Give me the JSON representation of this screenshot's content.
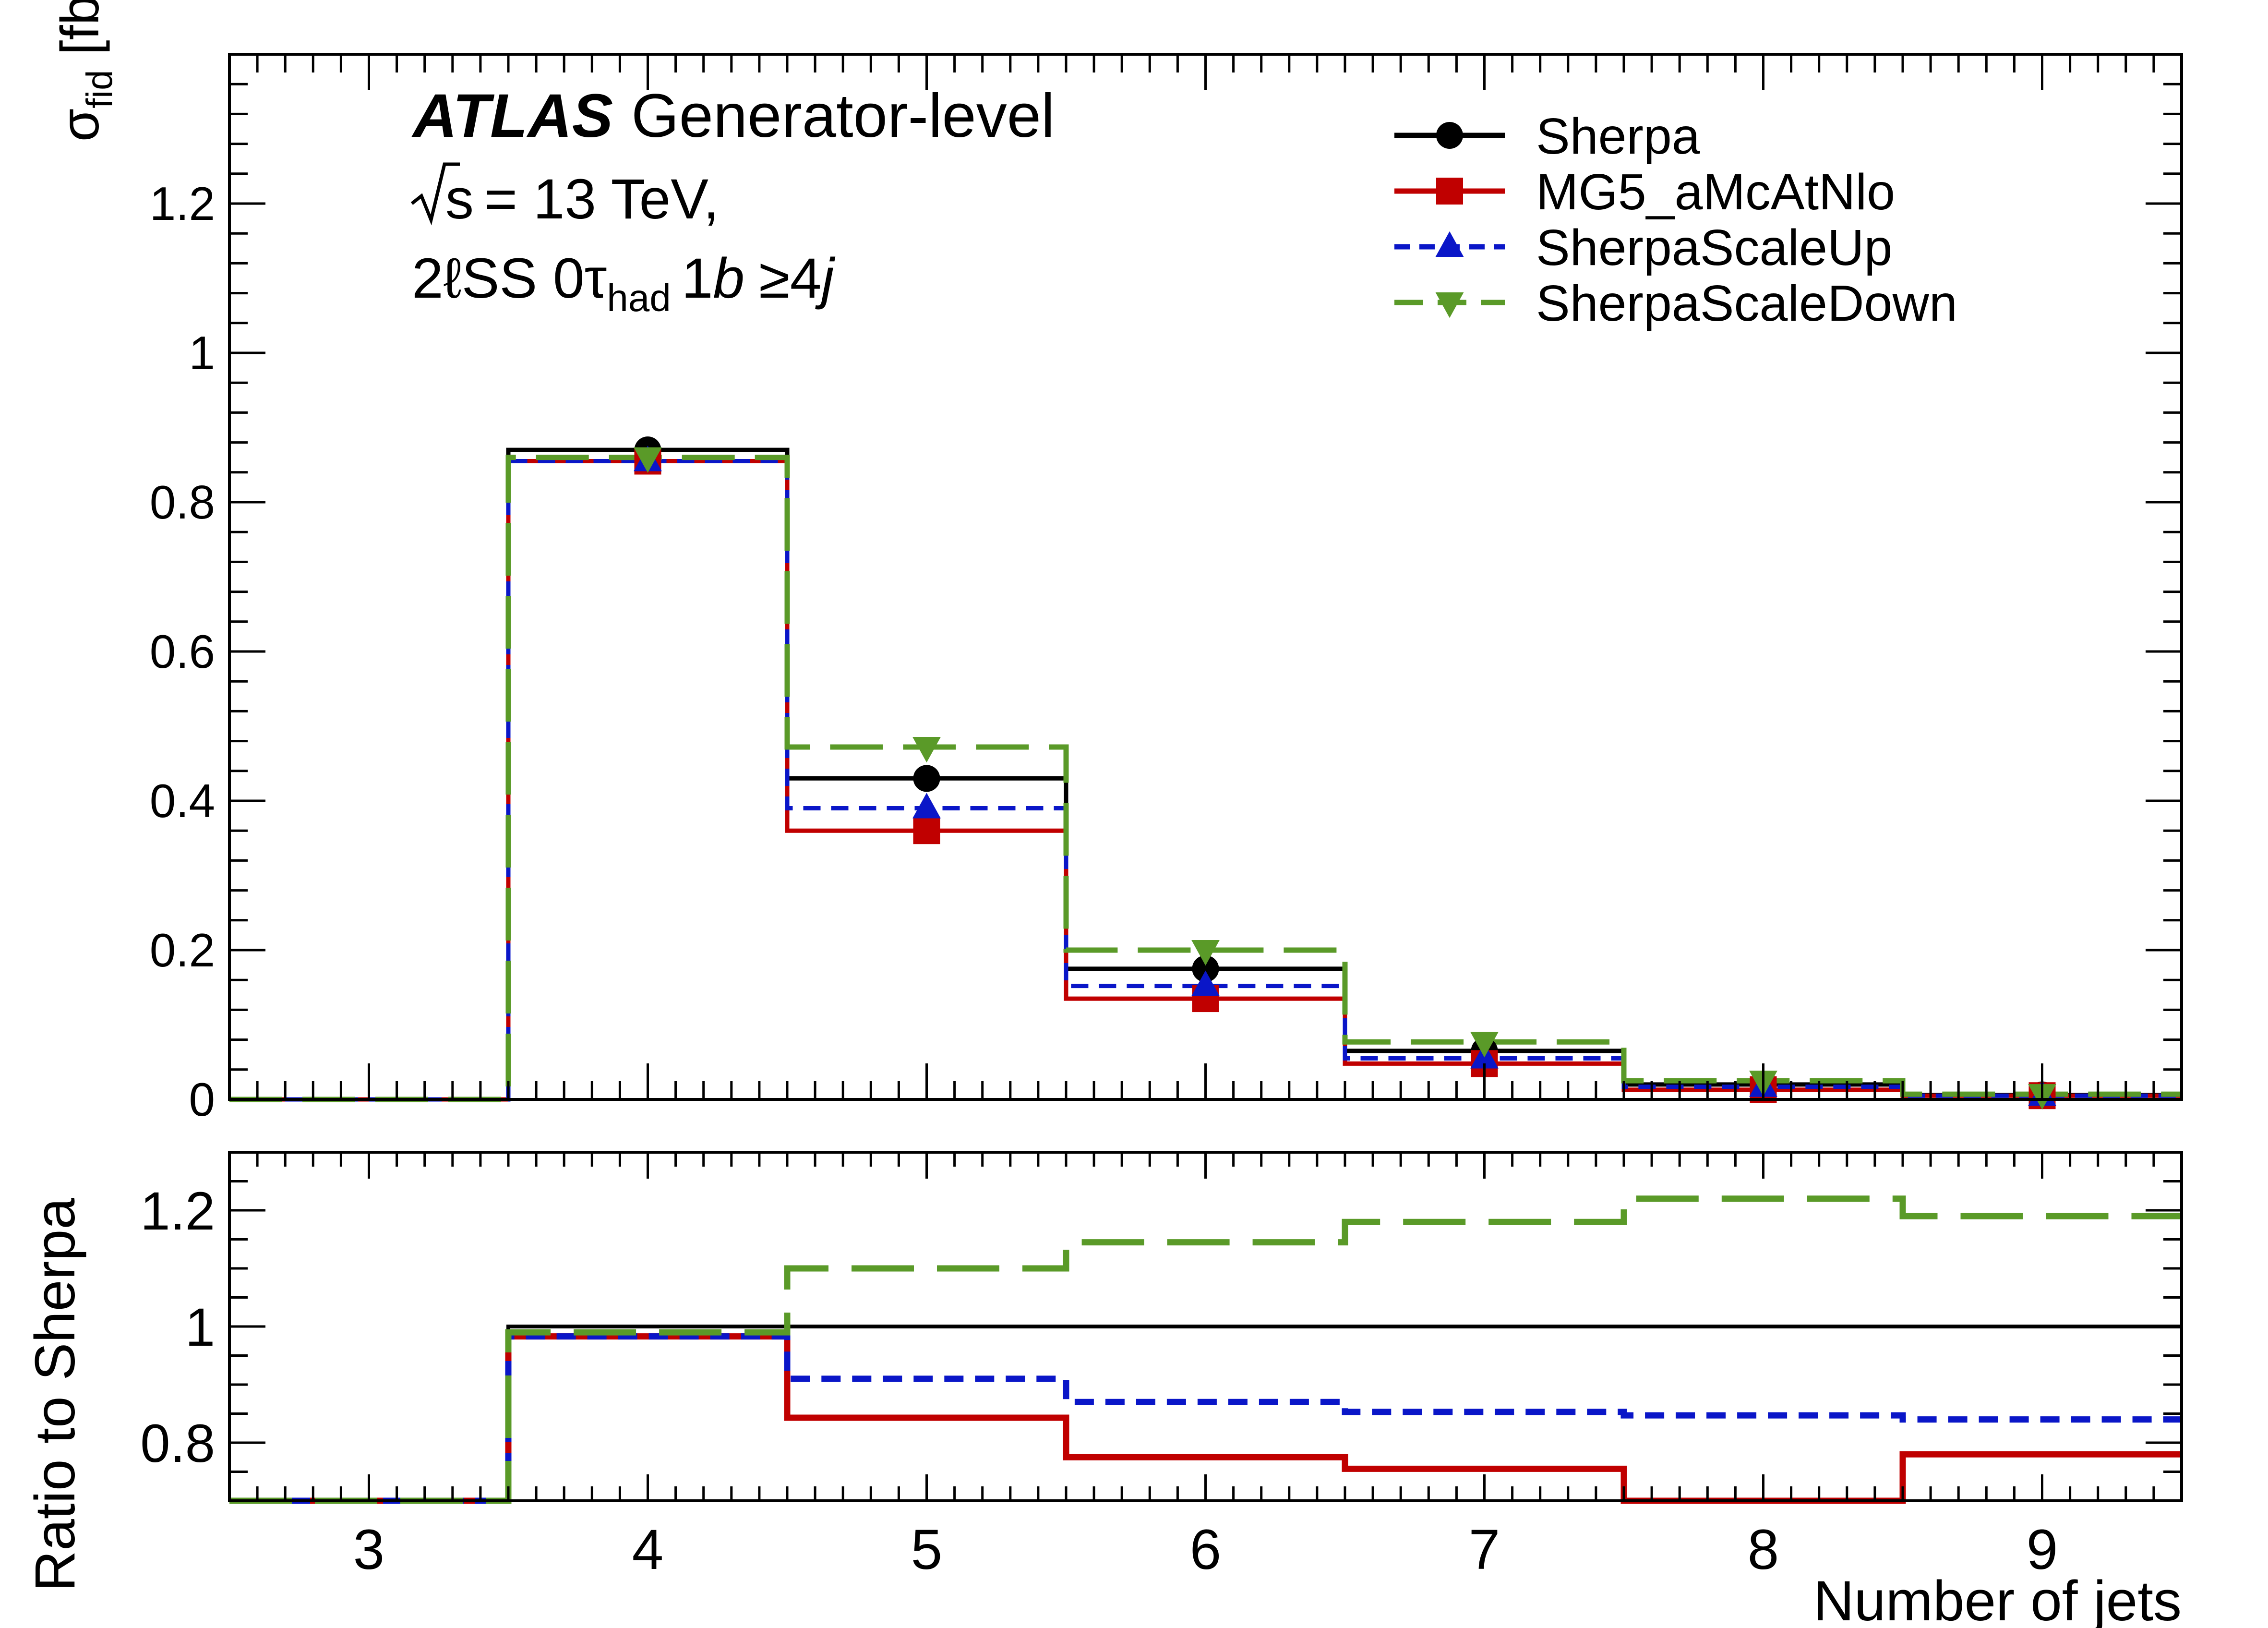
{
  "chart_data": {
    "type": "line",
    "drawstyle": "steps",
    "annotation": {
      "experiment": "ATLAS",
      "label": "Generator-level",
      "energy_sqrt": "s",
      "energy_text": "= 13 TeV,",
      "region_prefix": "2ℓSS 0τ",
      "region_sub": "had",
      "region_b_num": "1",
      "region_b": "b",
      "region_j_pre": "≥4",
      "region_j": "j"
    },
    "xlabel": "Number of jets",
    "x": [
      3,
      4,
      5,
      6,
      7,
      8,
      9
    ],
    "xlim": [
      2.5,
      9.5
    ],
    "top_panel": {
      "ylabel_main": "σ",
      "ylabel_sub": "fid",
      "ylabel_unit": "[fb]",
      "ylim": [
        0,
        1.4
      ],
      "yticks": [
        0,
        0.2,
        0.4,
        0.6,
        0.8,
        1,
        1.2
      ],
      "ytick_labels": [
        "0",
        "0.2",
        "0.4",
        "0.6",
        "0.8",
        "1",
        "1.2"
      ],
      "series": [
        {
          "name": "Sherpa",
          "color": "#000000",
          "marker": "circle",
          "dash": "solid",
          "values": [
            0.0,
            0.87,
            0.43,
            0.175,
            0.065,
            0.02,
            0.006
          ]
        },
        {
          "name": "MG5_aMcAtNlo",
          "color": "#c00000",
          "marker": "square",
          "dash": "solid",
          "values": [
            0.0,
            0.855,
            0.36,
            0.135,
            0.048,
            0.013,
            0.005
          ]
        },
        {
          "name": "SherpaScaleUp",
          "color": "#0a16c8",
          "marker": "triangle-up",
          "dash": "short",
          "values": [
            0.0,
            0.855,
            0.39,
            0.152,
            0.055,
            0.017,
            0.005
          ]
        },
        {
          "name": "SherpaScaleDown",
          "color": "#5a9a28",
          "marker": "triangle-down",
          "dash": "long",
          "values": [
            0.0,
            0.86,
            0.472,
            0.2,
            0.077,
            0.025,
            0.007
          ]
        }
      ]
    },
    "bottom_panel": {
      "ylabel": "Ratio to Sherpa",
      "ylim": [
        0.7,
        1.3
      ],
      "yticks": [
        0.8,
        1,
        1.2
      ],
      "ytick_labels": [
        "0.8",
        "1",
        "1.2"
      ],
      "series": [
        {
          "name": "Sherpa",
          "values": [
            0.7,
            1.0,
            1.0,
            1.0,
            1.0,
            1.0,
            1.0
          ]
        },
        {
          "name": "MG5_aMcAtNlo",
          "values": [
            0.7,
            0.983,
            0.843,
            0.775,
            0.755,
            0.7,
            0.78
          ]
        },
        {
          "name": "SherpaScaleUp",
          "values": [
            0.7,
            0.983,
            0.91,
            0.87,
            0.853,
            0.847,
            0.84
          ]
        },
        {
          "name": "SherpaScaleDown",
          "values": [
            0.7,
            0.99,
            1.1,
            1.145,
            1.18,
            1.22,
            1.19
          ]
        }
      ]
    },
    "xtick_labels": [
      "3",
      "4",
      "5",
      "6",
      "7",
      "8",
      "9"
    ],
    "legend_position": "top-right",
    "grid": false
  }
}
